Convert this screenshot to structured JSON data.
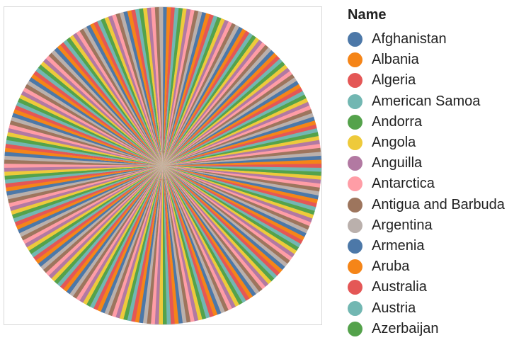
{
  "chart_data": {
    "type": "pie",
    "title": "",
    "legend": {
      "title": "Name",
      "placement": "right",
      "entries": [
        {
          "label": "Afghanistan",
          "color": "#4c78a8"
        },
        {
          "label": "Albania",
          "color": "#f58518"
        },
        {
          "label": "Algeria",
          "color": "#e45756"
        },
        {
          "label": "American Samoa",
          "color": "#72b7b2"
        },
        {
          "label": "Andorra",
          "color": "#54a24b"
        },
        {
          "label": "Angola",
          "color": "#eeca3b"
        },
        {
          "label": "Anguilla",
          "color": "#b279a2"
        },
        {
          "label": "Antarctica",
          "color": "#ff9da6"
        },
        {
          "label": "Antigua and Barbuda",
          "color": "#9d755d"
        },
        {
          "label": "Argentina",
          "color": "#bab0ac"
        },
        {
          "label": "Armenia",
          "color": "#4c78a8"
        },
        {
          "label": "Aruba",
          "color": "#f58518"
        },
        {
          "label": "Australia",
          "color": "#e45756"
        },
        {
          "label": "Austria",
          "color": "#72b7b2"
        },
        {
          "label": "Azerbaijan",
          "color": "#54a24b"
        }
      ]
    },
    "slice_count": 250,
    "slice_values": "equal",
    "palette": [
      "#4c78a8",
      "#f58518",
      "#e45756",
      "#72b7b2",
      "#54a24b",
      "#eeca3b",
      "#b279a2",
      "#ff9da6",
      "#9d755d",
      "#bab0ac"
    ]
  }
}
